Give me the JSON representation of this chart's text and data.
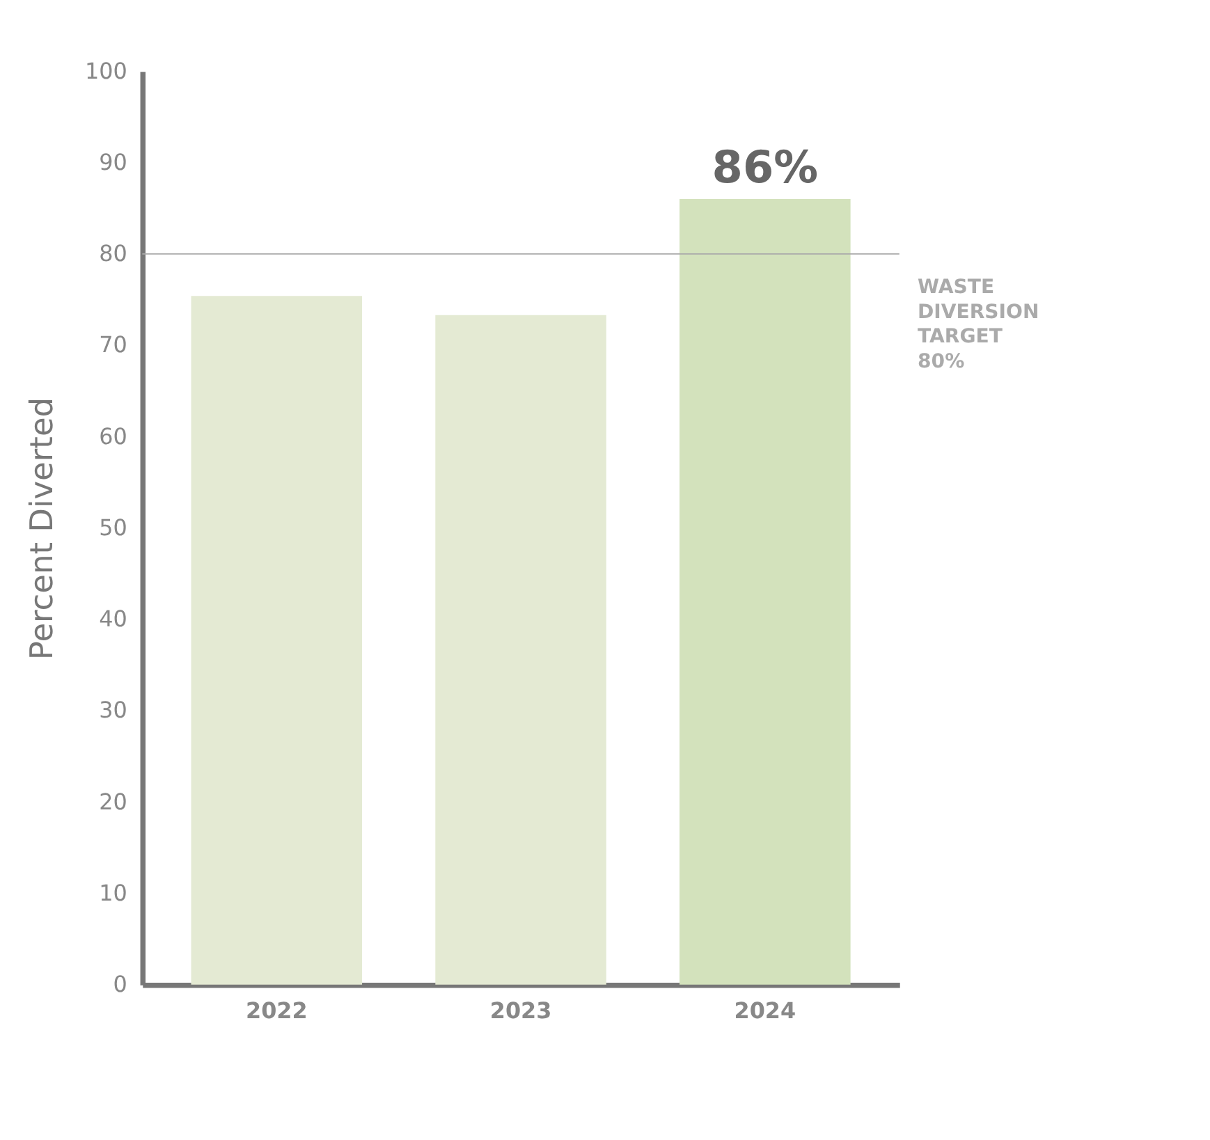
{
  "chart_data": {
    "type": "bar",
    "ylabel": "Percent Diverted",
    "categories": [
      "2022",
      "2023",
      "2024"
    ],
    "values": [
      75.4,
      73.3,
      86
    ],
    "colors": [
      "#e4ead3",
      "#e4ead3",
      "#d3e2bc"
    ],
    "value_labels": [
      null,
      null,
      "86%"
    ],
    "ylim": [
      0,
      100
    ],
    "yticks": [
      0,
      10,
      20,
      30,
      40,
      50,
      60,
      70,
      80,
      90,
      100
    ],
    "grid": false,
    "ref_lines": [
      {
        "axis": "y",
        "value": 80,
        "label": "WASTE DIVERSION TARGET 80%",
        "color": "#aaaaaa"
      }
    ]
  }
}
